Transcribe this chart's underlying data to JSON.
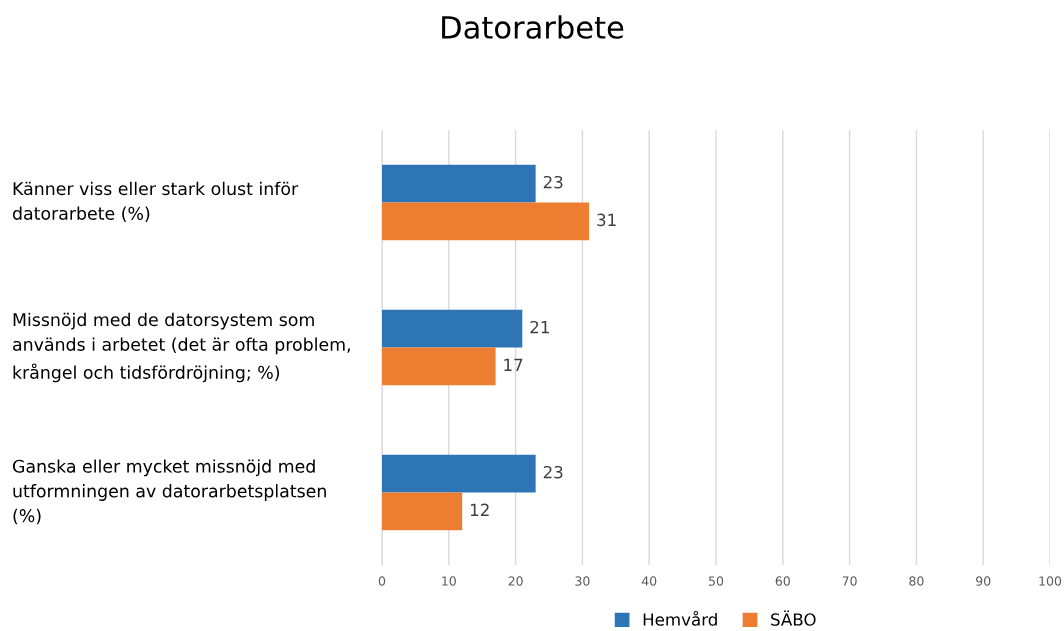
{
  "chart_data": {
    "type": "bar",
    "orientation": "horizontal",
    "title": "Datorarbete",
    "categories": [
      "Känner viss eller stark olust inför\ndatorarbete (%)",
      "Missnöjd med de datorsystem som\nanvänds i arbetet (det är ofta problem,\nkrångel och tidsfördröjning; %)",
      "Ganska eller mycket missnöjd med\nutformningen av datorarbetsplatsen\n(%)"
    ],
    "series": [
      {
        "name": "Hemvård",
        "color": "#2e75b6",
        "values": [
          23,
          21,
          23
        ]
      },
      {
        "name": "SÄBO",
        "color": "#ed7d31",
        "values": [
          31,
          17,
          12
        ]
      }
    ],
    "xlim": [
      0,
      100
    ],
    "xticks": [
      0,
      10,
      20,
      30,
      40,
      50,
      60,
      70,
      80,
      90,
      100
    ],
    "grid": "x",
    "legend": "bottom",
    "data_labels": true
  }
}
